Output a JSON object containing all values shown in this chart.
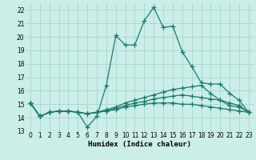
{
  "xlabel": "Humidex (Indice chaleur)",
  "xlim": [
    -0.5,
    23.5
  ],
  "ylim": [
    13,
    22.5
  ],
  "yticks": [
    13,
    14,
    15,
    16,
    17,
    18,
    19,
    20,
    21,
    22
  ],
  "xticks": [
    0,
    1,
    2,
    3,
    4,
    5,
    6,
    7,
    8,
    9,
    10,
    11,
    12,
    13,
    14,
    15,
    16,
    17,
    18,
    19,
    20,
    21,
    22,
    23
  ],
  "bg_color": "#cceee8",
  "grid_color": "#aad8d2",
  "line_color": "#1a7a6e",
  "lines": [
    {
      "x": [
        0,
        1,
        2,
        3,
        4,
        5,
        6,
        7,
        8,
        9,
        10,
        11,
        12,
        13,
        14,
        15,
        16,
        17,
        18,
        19,
        20,
        21,
        22,
        23
      ],
      "y": [
        15.1,
        14.1,
        14.4,
        14.5,
        14.5,
        14.4,
        13.3,
        14.1,
        16.4,
        20.1,
        19.4,
        19.4,
        21.2,
        22.2,
        20.7,
        20.8,
        18.9,
        17.8,
        16.6,
        16.5,
        16.5,
        15.8,
        15.3,
        14.4
      ]
    },
    {
      "x": [
        0,
        1,
        2,
        3,
        4,
        5,
        6,
        7,
        8,
        9,
        10,
        11,
        12,
        13,
        14,
        15,
        16,
        17,
        18,
        19,
        20,
        21,
        22,
        23
      ],
      "y": [
        15.1,
        14.1,
        14.4,
        14.5,
        14.5,
        14.4,
        14.3,
        14.4,
        14.6,
        14.8,
        15.1,
        15.3,
        15.5,
        15.7,
        15.9,
        16.1,
        16.2,
        16.3,
        16.4,
        15.8,
        15.3,
        14.9,
        14.8,
        14.4
      ]
    },
    {
      "x": [
        0,
        1,
        2,
        3,
        4,
        5,
        6,
        7,
        8,
        9,
        10,
        11,
        12,
        13,
        14,
        15,
        16,
        17,
        18,
        19,
        20,
        21,
        22,
        23
      ],
      "y": [
        15.1,
        14.1,
        14.4,
        14.5,
        14.5,
        14.4,
        14.3,
        14.4,
        14.5,
        14.7,
        14.9,
        15.1,
        15.2,
        15.4,
        15.5,
        15.6,
        15.7,
        15.6,
        15.5,
        15.4,
        15.3,
        15.1,
        14.9,
        14.4
      ]
    },
    {
      "x": [
        0,
        1,
        2,
        3,
        4,
        5,
        6,
        7,
        8,
        9,
        10,
        11,
        12,
        13,
        14,
        15,
        16,
        17,
        18,
        19,
        20,
        21,
        22,
        23
      ],
      "y": [
        15.1,
        14.1,
        14.4,
        14.5,
        14.5,
        14.4,
        14.3,
        14.4,
        14.5,
        14.6,
        14.8,
        14.9,
        15.0,
        15.1,
        15.1,
        15.1,
        15.0,
        15.0,
        14.9,
        14.8,
        14.7,
        14.6,
        14.5,
        14.4
      ]
    }
  ]
}
